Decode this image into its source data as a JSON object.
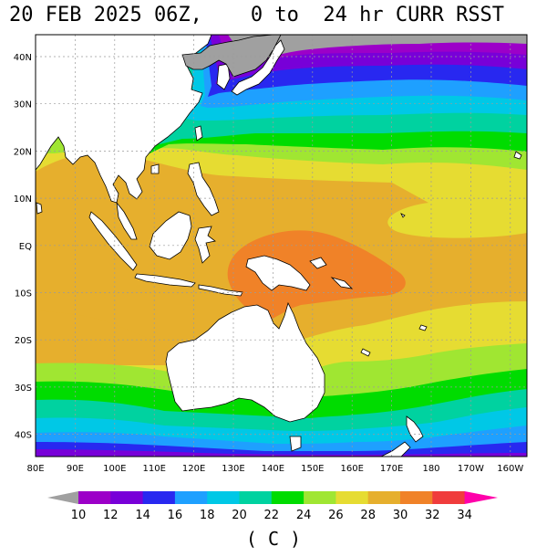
{
  "title": "20 FEB 2025 06Z,    0 to  24 hr CURR RSST",
  "unit_label": "( C )",
  "map": {
    "lon_labels": [
      "80E",
      "90E",
      "100E",
      "110E",
      "120E",
      "130E",
      "140E",
      "150E",
      "160E",
      "170E",
      "180",
      "170W",
      "160W"
    ],
    "lat_labels": [
      "40N",
      "30N",
      "20N",
      "10N",
      "EQ",
      "10S",
      "20S",
      "30S",
      "40S"
    ],
    "land_color": "#ffffff",
    "ice_land_color": "#a0a0a0",
    "gridline_style": "dotted-gray"
  },
  "colorbar": {
    "ticks": [
      "10",
      "12",
      "14",
      "16",
      "18",
      "20",
      "22",
      "24",
      "26",
      "28",
      "30",
      "32",
      "34"
    ],
    "colors": [
      "#9c00c8",
      "#7800d8",
      "#2828f0",
      "#1ea0ff",
      "#00c8e6",
      "#00d2a0",
      "#00dc00",
      "#a0e632",
      "#e6dc32",
      "#e6af2d",
      "#f08228",
      "#f03c3c",
      "#ff0096"
    ],
    "under_color": "#a0a0a0",
    "over_color": "#ff00aa"
  },
  "bands": [
    {
      "temp": 10,
      "color": "#9c00c8"
    },
    {
      "temp": 12,
      "color": "#7800d8"
    },
    {
      "temp": 14,
      "color": "#2828f0"
    },
    {
      "temp": 16,
      "color": "#1ea0ff"
    },
    {
      "temp": 18,
      "color": "#00c8e6"
    },
    {
      "temp": 20,
      "color": "#00d2a0"
    },
    {
      "temp": 22,
      "color": "#00dc00"
    },
    {
      "temp": 24,
      "color": "#a0e632"
    },
    {
      "temp": 26,
      "color": "#e6dc32"
    },
    {
      "temp": 28,
      "color": "#e6af2d"
    },
    {
      "temp": 30,
      "color": "#f08228"
    }
  ]
}
